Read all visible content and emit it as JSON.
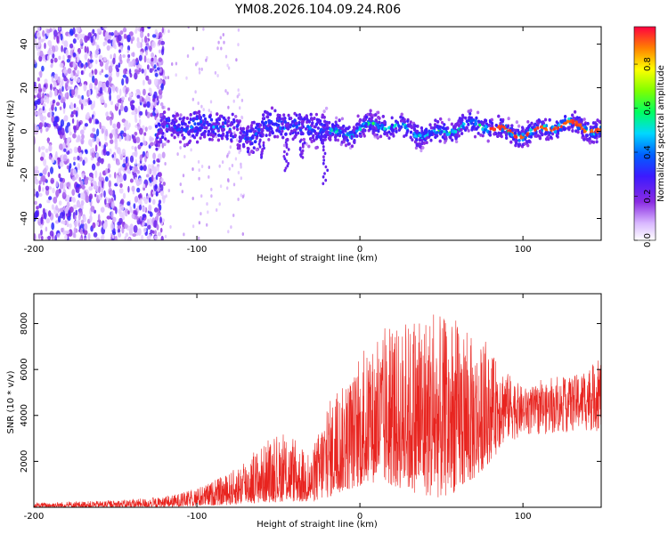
{
  "chart_data": [
    {
      "type": "heatmap",
      "title": "YM08.2026.104.09.24.R06",
      "xlabel": "Height of straight line (km)",
      "ylabel": "Frequency (Hz)",
      "xlim": [
        -200,
        148
      ],
      "ylim": [
        -50,
        48
      ],
      "xticks": [
        -200,
        -100,
        0,
        100
      ],
      "yticks": [
        -40,
        -20,
        0,
        20,
        40
      ],
      "colorbar": {
        "label": "Normalized spectral amplitude",
        "range": [
          0,
          0.97
        ],
        "ticks": [
          0.0,
          0.2,
          0.4,
          0.6,
          0.8
        ],
        "colormap": "rainbow"
      },
      "regions": [
        {
          "name": "noise",
          "x": [
            -200,
            -120
          ],
          "description": "diffuse low-amplitude scatter across all frequencies"
        },
        {
          "name": "signal-band",
          "x": [
            -120,
            148
          ],
          "freq_center": 1,
          "freq_halfwidth": 5,
          "peak_amplitude": 0.95
        }
      ]
    },
    {
      "type": "line",
      "xlabel": "Height of straight line (km)",
      "ylabel": "SNR (10 * v/v)",
      "xlim": [
        -200,
        148
      ],
      "ylim": [
        0,
        9300
      ],
      "xticks": [
        -200,
        -100,
        0,
        100
      ],
      "yticks": [
        2000,
        4000,
        6000,
        8000
      ],
      "color": "#e8241f",
      "envelope": {
        "x": [
          -200,
          -150,
          -120,
          -100,
          -80,
          -60,
          -45,
          -30,
          -20,
          -10,
          0,
          10,
          20,
          30,
          40,
          50,
          60,
          70,
          80,
          90,
          100,
          120,
          140,
          148
        ],
        "upper": [
          200,
          300,
          450,
          800,
          1500,
          2700,
          3100,
          2200,
          4600,
          5300,
          6300,
          7200,
          7700,
          8000,
          8600,
          8300,
          8000,
          7300,
          6700,
          5900,
          5200,
          5400,
          6000,
          6400
        ],
        "lower": [
          0,
          0,
          0,
          50,
          100,
          200,
          250,
          200,
          400,
          700,
          900,
          1100,
          900,
          700,
          500,
          400,
          700,
          1200,
          2000,
          2800,
          3100,
          3200,
          3300,
          3300
        ]
      }
    }
  ]
}
